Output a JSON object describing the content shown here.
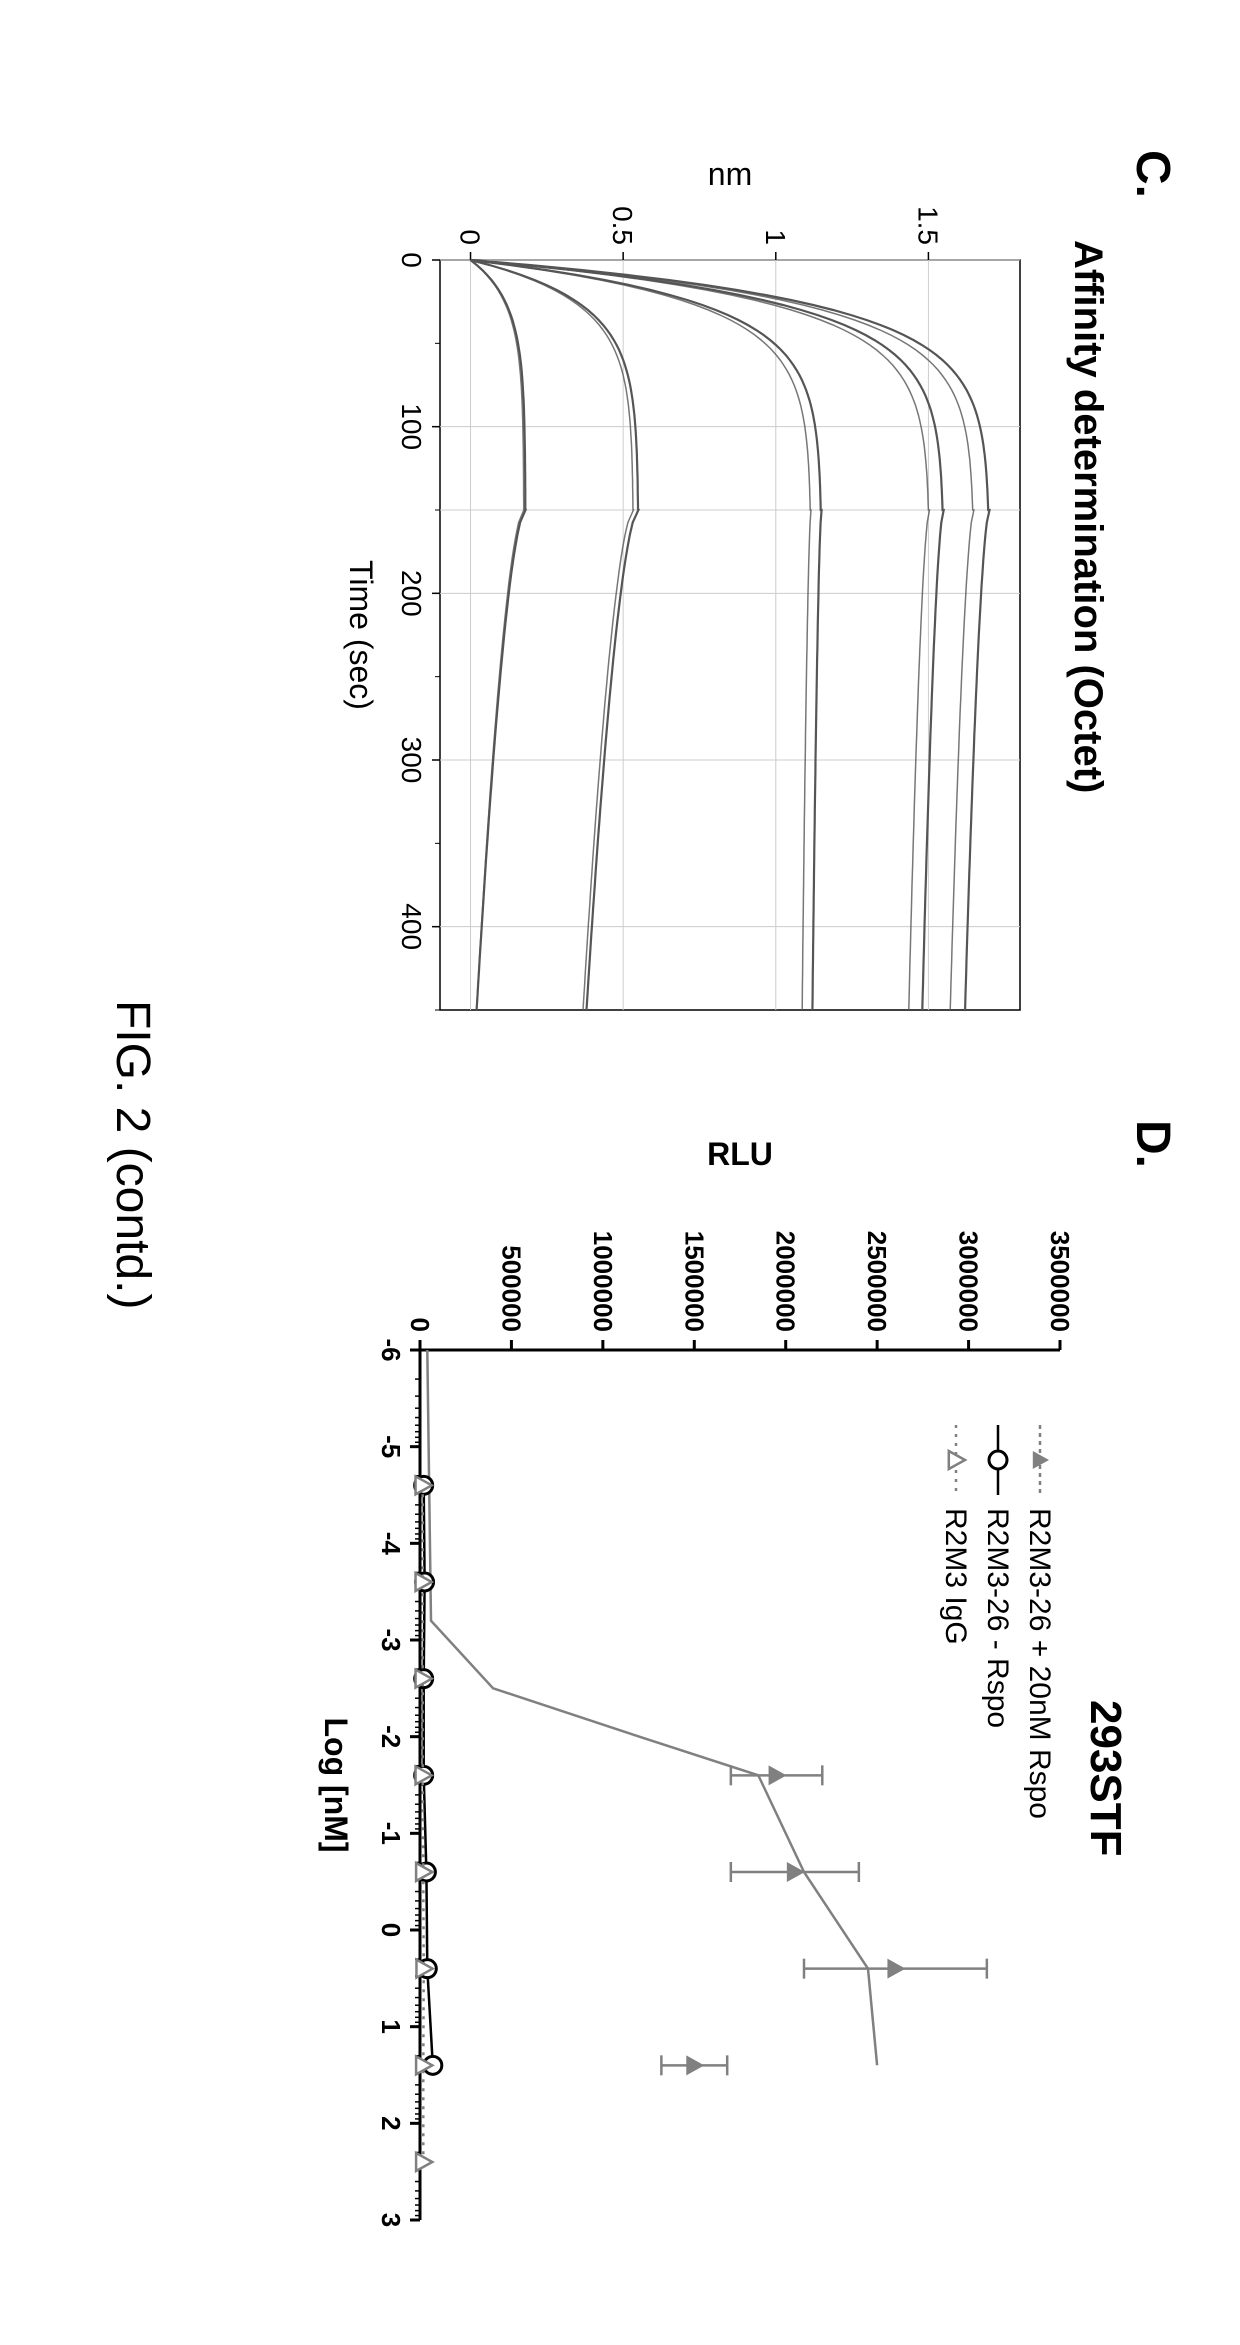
{
  "panelC": {
    "label": "C.",
    "title": "Affinity determination (Octet)",
    "xlabel": "Time (sec)",
    "ylabel": "nm",
    "xlim": [
      0,
      450
    ],
    "ylim": [
      -0.1,
      1.8
    ],
    "xticks": [
      0,
      100,
      200,
      300,
      400
    ],
    "yticks": [
      0,
      0.5,
      1,
      1.5
    ],
    "grid_color": "#cccccc",
    "line_color": "#555555",
    "background_color": "#ffffff",
    "curves": [
      {
        "assoc_max": 1.7,
        "dissoc_end": 1.62
      },
      {
        "assoc_max": 1.55,
        "dissoc_end": 1.48
      },
      {
        "assoc_max": 1.15,
        "dissoc_end": 1.12
      },
      {
        "assoc_max": 0.55,
        "dissoc_end": 0.38
      },
      {
        "assoc_max": 0.18,
        "dissoc_end": 0.02
      }
    ],
    "assoc_end_time": 150,
    "total_time": 450,
    "title_fontsize": 40,
    "tick_fontsize": 28,
    "label_fontsize": 32
  },
  "panelD": {
    "label": "D.",
    "title": "293STF",
    "xlabel": "Log [nM]",
    "ylabel": "RLU",
    "xlim": [
      -6,
      3
    ],
    "ylim": [
      0,
      3500000
    ],
    "xticks": [
      -6,
      -5,
      -4,
      -3,
      -2,
      -1,
      0,
      1,
      2,
      3
    ],
    "yticks": [
      0,
      500000,
      1000000,
      1500000,
      2000000,
      2500000,
      3000000,
      3500000
    ],
    "legend": [
      {
        "label": "R2M3-26 + 20nM Rspo",
        "marker": "triangle-filled",
        "color": "#808080"
      },
      {
        "label": "R2M3-26 - Rspo",
        "marker": "circle-open",
        "color": "#000000"
      },
      {
        "label": "R2M3 IgG",
        "marker": "triangle-open",
        "color": "#808080"
      }
    ],
    "series1": {
      "color": "#808080",
      "points": [
        {
          "x": -1.6,
          "y": 1950000,
          "err": 250000
        },
        {
          "x": -0.6,
          "y": 2050000,
          "err": 350000
        },
        {
          "x": 0.4,
          "y": 2600000,
          "err": 500000
        },
        {
          "x": 1.4,
          "y": 1500000,
          "err": 180000
        }
      ],
      "curve": [
        {
          "x": -6,
          "y": 40000
        },
        {
          "x": -3.2,
          "y": 60000
        },
        {
          "x": -2.5,
          "y": 400000
        },
        {
          "x": -2.0,
          "y": 1200000
        },
        {
          "x": -1.6,
          "y": 1850000
        },
        {
          "x": -0.6,
          "y": 2100000
        },
        {
          "x": 0.4,
          "y": 2450000
        },
        {
          "x": 1.4,
          "y": 2500000
        }
      ]
    },
    "series2": {
      "color": "#000000",
      "points": [
        {
          "x": -4.6,
          "y": 20000
        },
        {
          "x": -3.6,
          "y": 25000
        },
        {
          "x": -2.6,
          "y": 20000
        },
        {
          "x": -1.6,
          "y": 20000
        },
        {
          "x": -0.6,
          "y": 35000
        },
        {
          "x": 0.4,
          "y": 40000
        },
        {
          "x": 1.4,
          "y": 70000
        }
      ]
    },
    "series3": {
      "color": "#808080",
      "points": [
        {
          "x": -4.6,
          "y": 15000
        },
        {
          "x": -3.6,
          "y": 15000
        },
        {
          "x": -2.6,
          "y": 15000
        },
        {
          "x": -1.6,
          "y": 15000
        },
        {
          "x": -0.6,
          "y": 18000
        },
        {
          "x": 0.4,
          "y": 20000
        },
        {
          "x": 1.4,
          "y": 18000
        },
        {
          "x": 2.4,
          "y": 18000
        }
      ]
    },
    "title_fontsize": 44,
    "tick_fontsize": 26,
    "label_fontsize": 32,
    "legend_fontsize": 30
  },
  "caption": "FIG. 2 (contd.)"
}
